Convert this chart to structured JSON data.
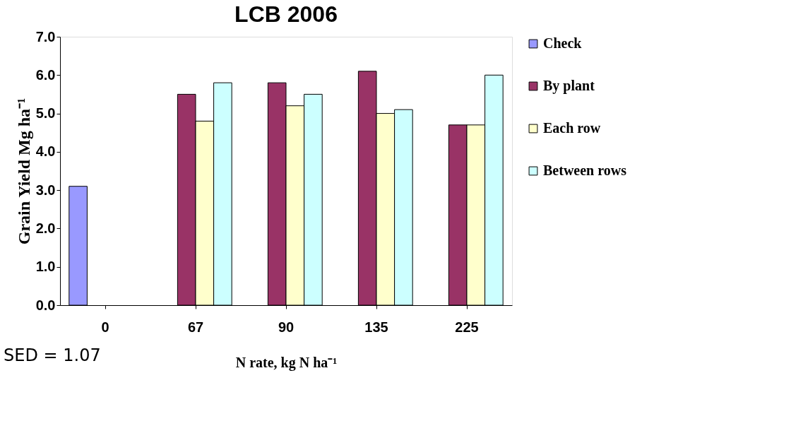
{
  "chart_data": {
    "type": "bar",
    "title": "LCB 2006",
    "xlabel": "N rate, kg N ha⁻¹",
    "ylabel": "Grain Yield Mg ha⁻¹",
    "categories": [
      "0",
      "67",
      "90",
      "135",
      "225"
    ],
    "series": [
      {
        "name": "Check",
        "color": "#9999ff",
        "values": [
          3.1,
          null,
          null,
          null,
          null
        ]
      },
      {
        "name": "By  plant",
        "color": "#993366",
        "values": [
          null,
          5.5,
          5.8,
          6.1,
          4.7
        ]
      },
      {
        "name": "Each  row",
        "color": "#ffffcc",
        "values": [
          null,
          4.8,
          5.2,
          5.0,
          4.7
        ]
      },
      {
        "name": "Between rows",
        "color": "#ccffff",
        "values": [
          null,
          5.8,
          5.5,
          5.1,
          6.0
        ]
      }
    ],
    "ylim": [
      0,
      7
    ],
    "yticks": [
      {
        "value": 0,
        "label": "0.0"
      },
      {
        "value": 1,
        "label": "1.0"
      },
      {
        "value": 2,
        "label": "2.0"
      },
      {
        "value": 3,
        "label": "3.0"
      },
      {
        "value": 4,
        "label": "4.0"
      },
      {
        "value": 5,
        "label": "5.0"
      },
      {
        "value": 6,
        "label": "6.0"
      },
      {
        "value": 7,
        "label": "7.0"
      }
    ],
    "annotations": [
      "SED = 1.07"
    ],
    "legend": "right",
    "grid": false
  }
}
